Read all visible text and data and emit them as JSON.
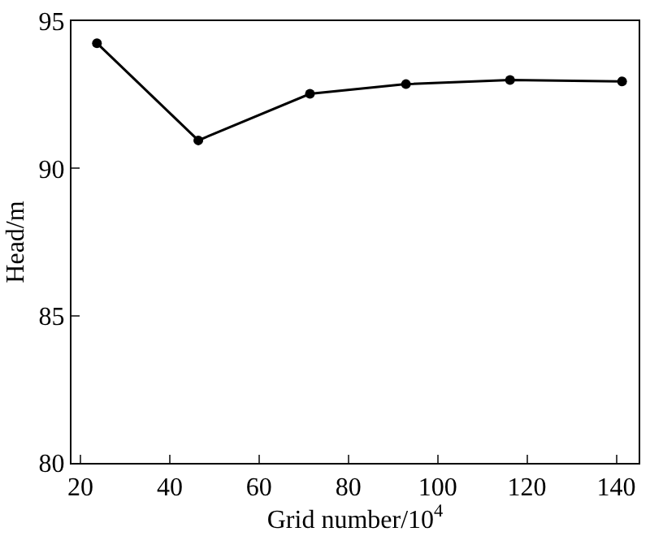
{
  "chart_data": {
    "type": "line",
    "xlabel": "Grid number/10$^{4}$",
    "ylabel": "Head/m",
    "x": [
      23.7,
      46.4,
      71.4,
      92.9,
      116.2,
      141.3
    ],
    "series": [
      {
        "color": "#000000",
        "values": [
          94.25,
          90.95,
          92.53,
          92.86,
          93.0,
          92.95
        ]
      }
    ],
    "xlim": [
      18,
      145
    ],
    "xticks": [
      20,
      40,
      60,
      80,
      100,
      120,
      140
    ],
    "ylim": [
      80,
      95
    ],
    "yticks": [
      80,
      85,
      90,
      95
    ],
    "marker": "circle",
    "line_style": "solid"
  }
}
